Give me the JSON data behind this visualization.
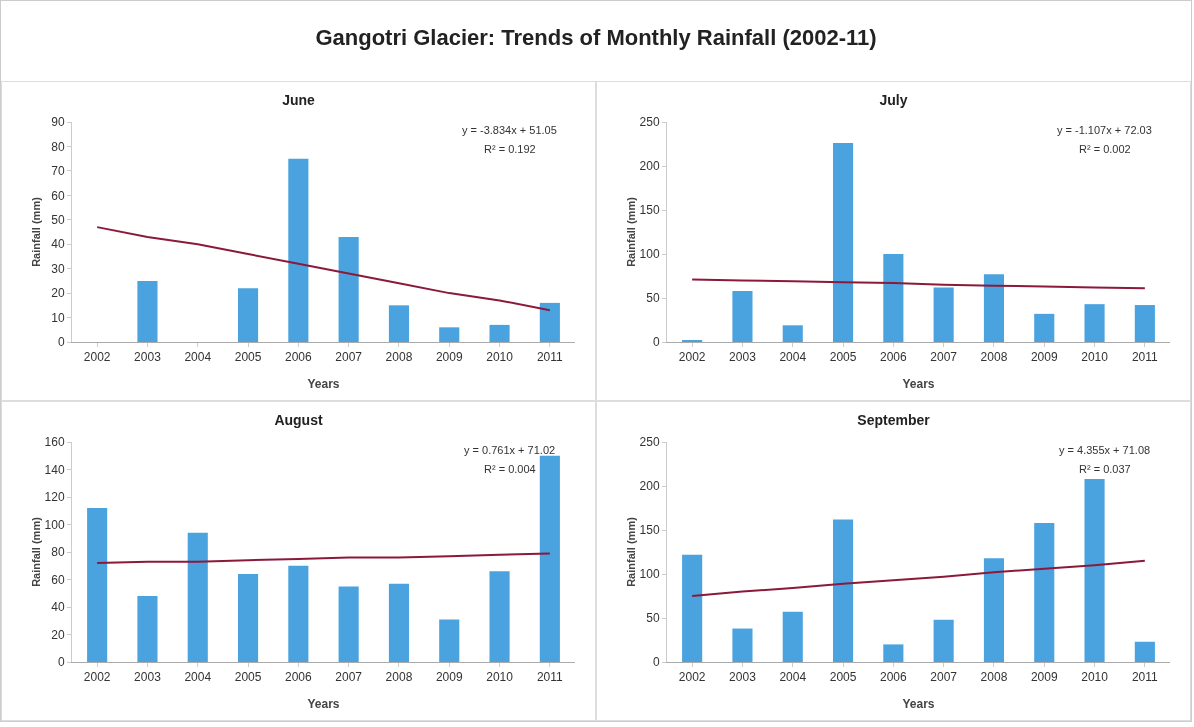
{
  "chart_data": [
    {
      "type": "other",
      "title": "Gangotri Glacier: Trends of Monthly Rainfall (2002-11)"
    },
    {
      "type": "bar",
      "title": "June",
      "xlabel": "Years",
      "ylabel": "Rainfall (mm)",
      "categories": [
        "2002",
        "2003",
        "2004",
        "2005",
        "2006",
        "2007",
        "2008",
        "2009",
        "2010",
        "2011"
      ],
      "ylim": [
        0,
        90
      ],
      "yticks": [
        0,
        10,
        20,
        30,
        40,
        50,
        60,
        70,
        80,
        90
      ],
      "annotations": [
        "y = -3.834x + 51.05",
        "R² = 0.192"
      ],
      "series": [
        {
          "color": "#4aa3df",
          "values": [
            0,
            25,
            0,
            22,
            75,
            43,
            15,
            6,
            7,
            16
          ]
        },
        {
          "type": "line",
          "color": "#8b1a3a",
          "values": [
            47,
            43,
            40,
            36,
            32,
            28,
            24,
            20,
            17,
            13
          ]
        }
      ]
    },
    {
      "type": "bar",
      "title": "July",
      "xlabel": "Years",
      "ylabel": "Rainfall (mm)",
      "categories": [
        "2002",
        "2003",
        "2004",
        "2005",
        "2006",
        "2007",
        "2008",
        "2009",
        "2010",
        "2011"
      ],
      "ylim": [
        0,
        250
      ],
      "yticks": [
        0,
        50,
        100,
        150,
        200,
        250
      ],
      "annotations": [
        "y = -1.107x + 72.03",
        "R² = 0.002"
      ],
      "series": [
        {
          "color": "#4aa3df",
          "values": [
            2,
            58,
            19,
            226,
            100,
            62,
            77,
            32,
            43,
            42
          ]
        },
        {
          "type": "line",
          "color": "#8b1a3a",
          "values": [
            71,
            70,
            69,
            68,
            67,
            65,
            64,
            63,
            62,
            61
          ]
        }
      ]
    },
    {
      "type": "bar",
      "title": "August",
      "xlabel": "Years",
      "ylabel": "Rainfall (mm)",
      "categories": [
        "2002",
        "2003",
        "2004",
        "2005",
        "2006",
        "2007",
        "2008",
        "2009",
        "2010",
        "2011"
      ],
      "ylim": [
        0,
        160
      ],
      "yticks": [
        0,
        20,
        40,
        60,
        80,
        100,
        120,
        140,
        160
      ],
      "annotations": [
        "y = 0.761x + 71.02",
        "R² = 0.004"
      ],
      "series": [
        {
          "color": "#4aa3df",
          "values": [
            112,
            48,
            94,
            64,
            70,
            55,
            57,
            31,
            66,
            150
          ]
        },
        {
          "type": "line",
          "color": "#8b1a3a",
          "values": [
            72,
            73,
            73,
            74,
            75,
            76,
            76,
            77,
            78,
            79
          ]
        }
      ]
    },
    {
      "type": "bar",
      "title": "September",
      "xlabel": "Years",
      "ylabel": "Rainfall (mm)",
      "categories": [
        "2002",
        "2003",
        "2004",
        "2005",
        "2006",
        "2007",
        "2008",
        "2009",
        "2010",
        "2011"
      ],
      "ylim": [
        0,
        250
      ],
      "yticks": [
        0,
        50,
        100,
        150,
        200,
        250
      ],
      "annotations": [
        "y = 4.355x + 71.08",
        "R² = 0.037"
      ],
      "series": [
        {
          "color": "#4aa3df",
          "values": [
            122,
            38,
            57,
            162,
            20,
            48,
            118,
            158,
            208,
            23
          ]
        },
        {
          "type": "line",
          "color": "#8b1a3a",
          "values": [
            75,
            80,
            84,
            89,
            93,
            97,
            102,
            106,
            110,
            115
          ]
        }
      ]
    }
  ]
}
